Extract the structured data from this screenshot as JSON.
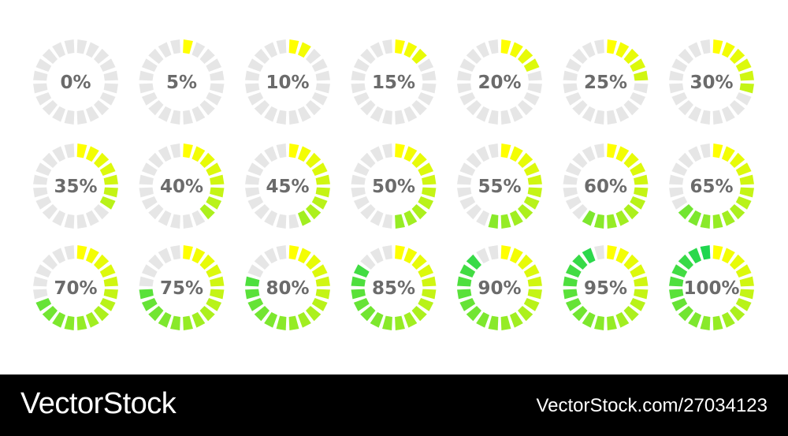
{
  "colors": {
    "empty_segment": "#e6e6e6",
    "fill_start": "#ffff00",
    "fill_end": "#1fd64f",
    "label": "#6b6b6b",
    "footer_bg": "#000000",
    "footer_text": "#ffffff"
  },
  "progress_rings": [
    {
      "label": "0%",
      "value": 0
    },
    {
      "label": "5%",
      "value": 5
    },
    {
      "label": "10%",
      "value": 10
    },
    {
      "label": "15%",
      "value": 15
    },
    {
      "label": "20%",
      "value": 20
    },
    {
      "label": "25%",
      "value": 25
    },
    {
      "label": "30%",
      "value": 30
    },
    {
      "label": "35%",
      "value": 35
    },
    {
      "label": "40%",
      "value": 40
    },
    {
      "label": "45%",
      "value": 45
    },
    {
      "label": "50%",
      "value": 50
    },
    {
      "label": "55%",
      "value": 55
    },
    {
      "label": "60%",
      "value": 60
    },
    {
      "label": "65%",
      "value": 65
    },
    {
      "label": "70%",
      "value": 70
    },
    {
      "label": "75%",
      "value": 75
    },
    {
      "label": "80%",
      "value": 80
    },
    {
      "label": "85%",
      "value": 85
    },
    {
      "label": "90%",
      "value": 90
    },
    {
      "label": "95%",
      "value": 95
    },
    {
      "label": "100%",
      "value": 100
    }
  ],
  "footer": {
    "brand": "VectorStock",
    "image_credit": "VectorStock.com/27034123"
  }
}
